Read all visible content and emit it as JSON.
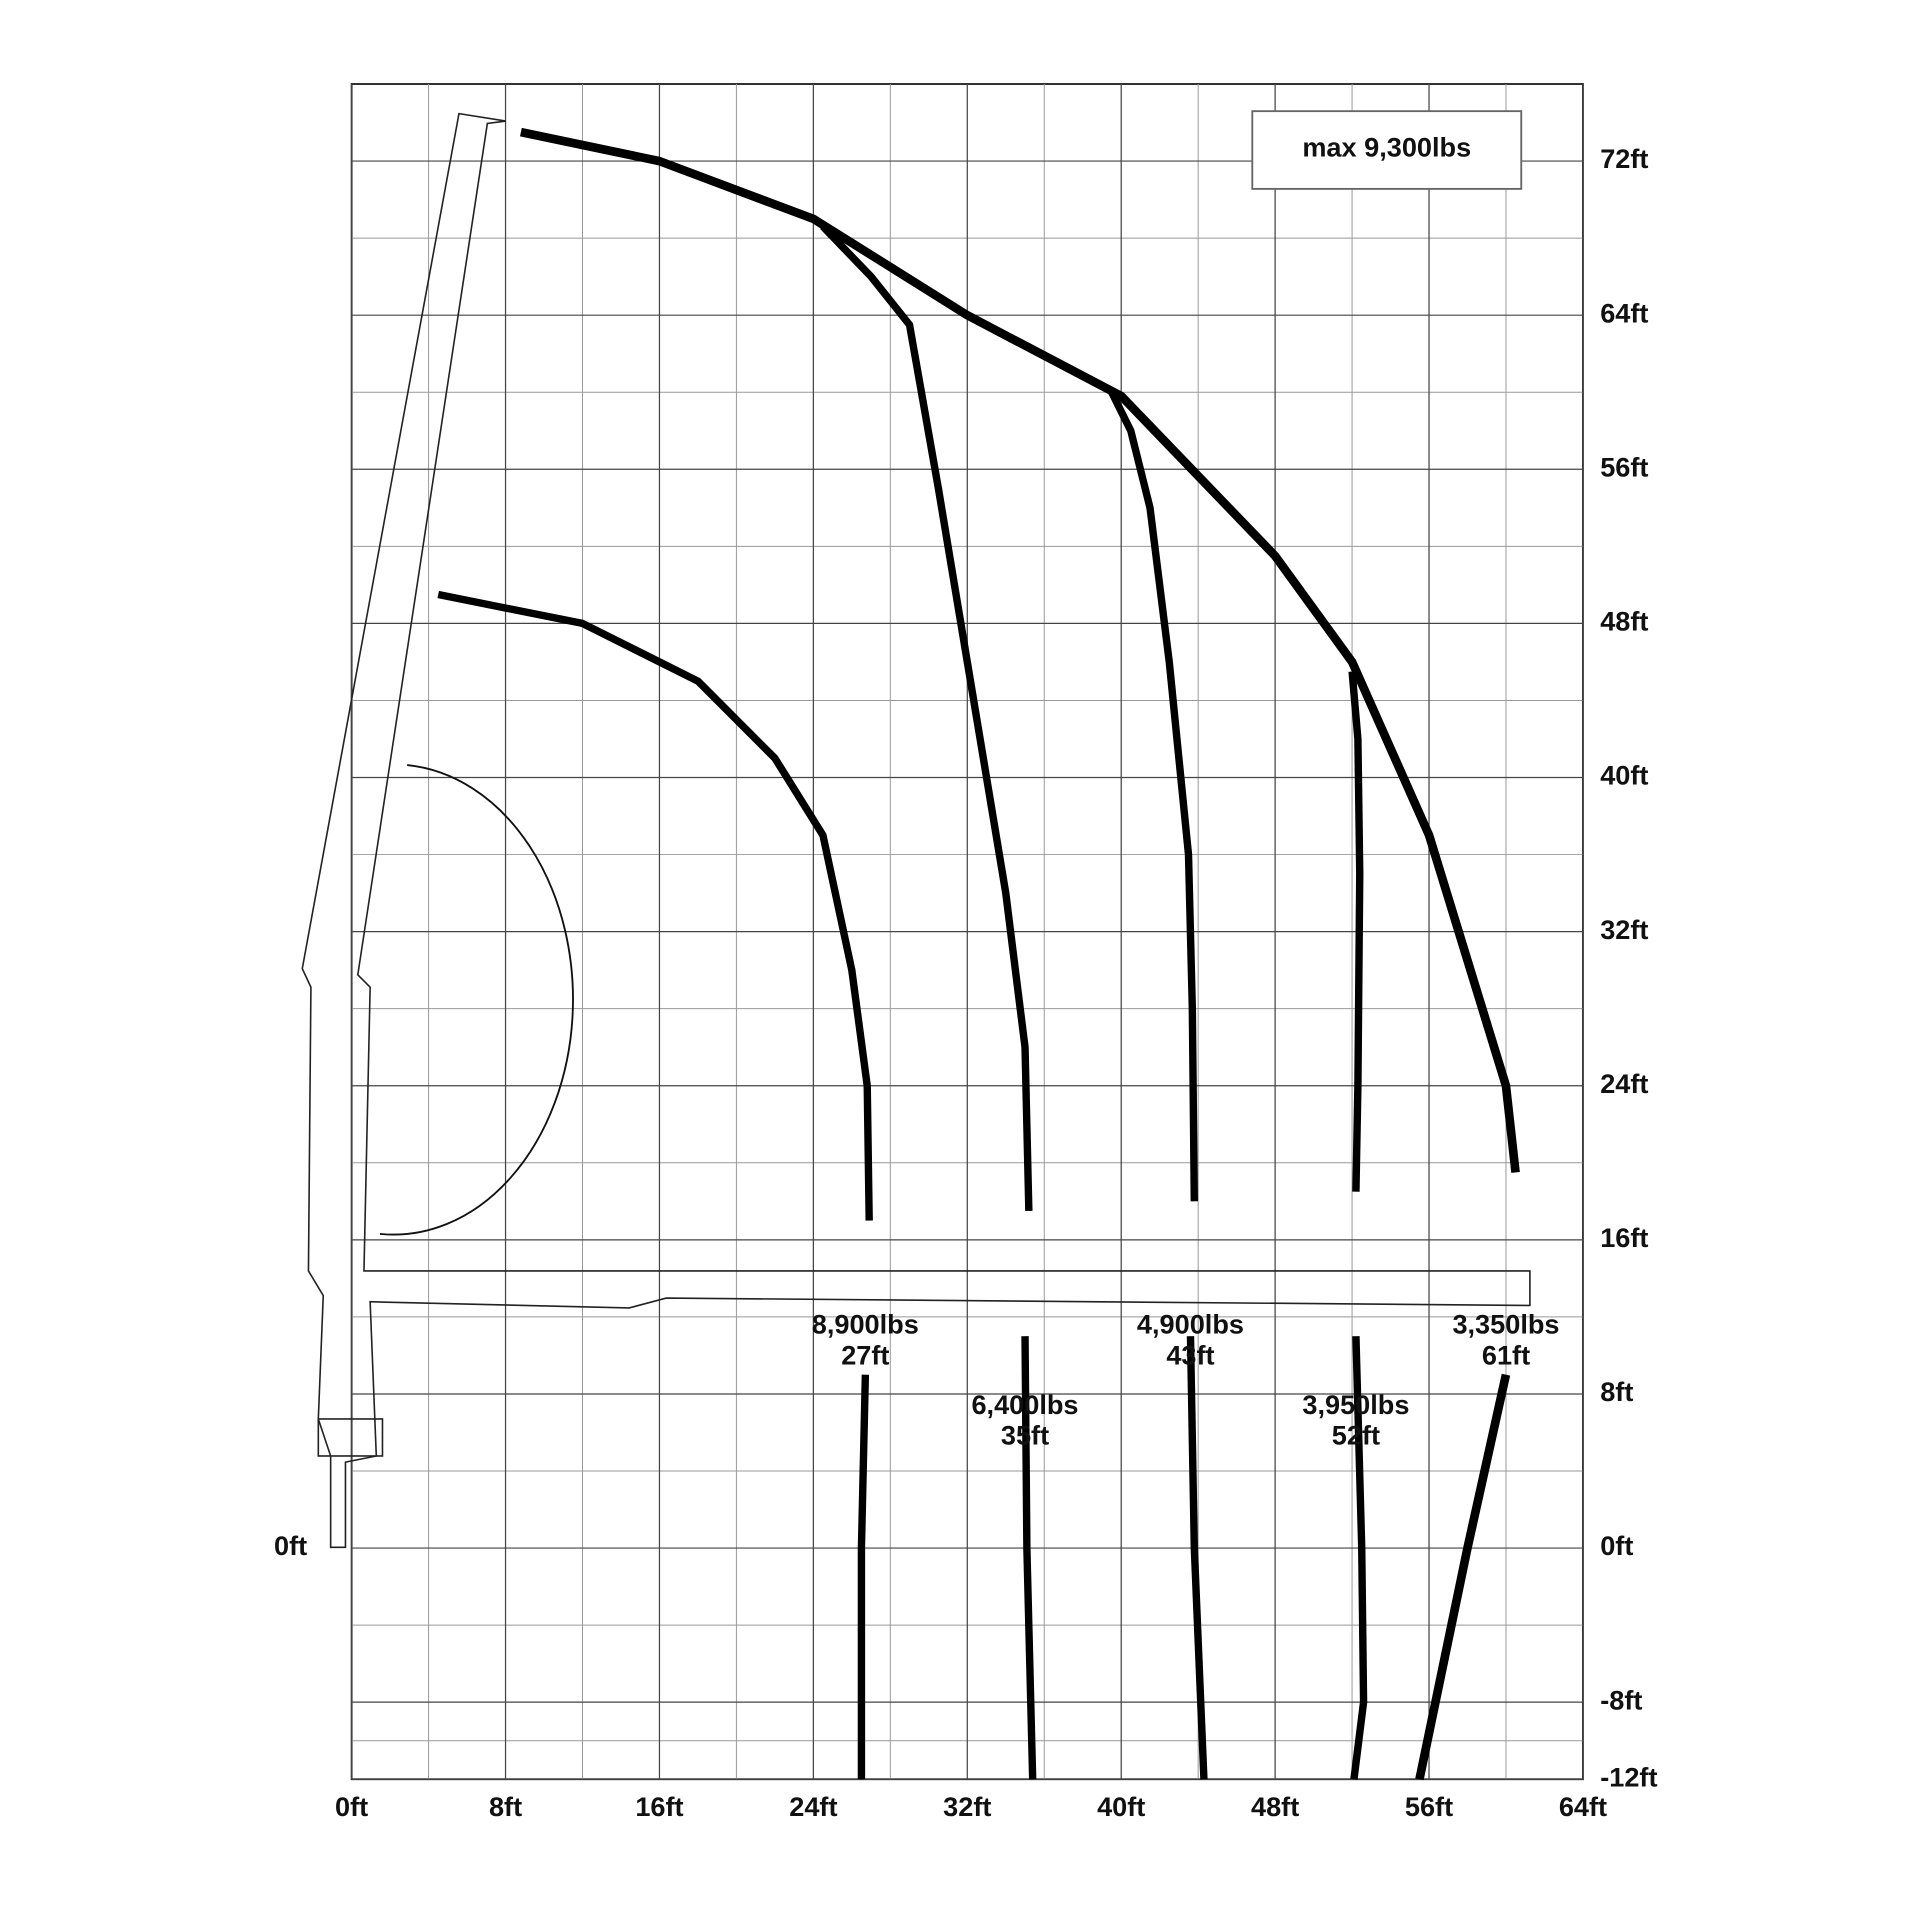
{
  "chart_data": {
    "type": "line",
    "annotation": "max 9,300lbs",
    "xlim": [
      0,
      64
    ],
    "ylim": [
      -12,
      76
    ],
    "xticks": [
      {
        "value": 0,
        "label": "0ft"
      },
      {
        "value": 8,
        "label": "8ft"
      },
      {
        "value": 16,
        "label": "16ft"
      },
      {
        "value": 24,
        "label": "24ft"
      },
      {
        "value": 32,
        "label": "32ft"
      },
      {
        "value": 40,
        "label": "40ft"
      },
      {
        "value": 48,
        "label": "48ft"
      },
      {
        "value": 56,
        "label": "56ft"
      },
      {
        "value": 64,
        "label": "64ft"
      }
    ],
    "yticks": [
      {
        "value": 72,
        "label": "72ft"
      },
      {
        "value": 64,
        "label": "64ft"
      },
      {
        "value": 56,
        "label": "56ft"
      },
      {
        "value": 48,
        "label": "48ft"
      },
      {
        "value": 40,
        "label": "40ft"
      },
      {
        "value": 32,
        "label": "32ft"
      },
      {
        "value": 24,
        "label": "24ft"
      },
      {
        "value": 16,
        "label": "16ft"
      },
      {
        "value": 8,
        "label": "8ft"
      },
      {
        "value": 0,
        "label": "0ft"
      },
      {
        "value": -8,
        "label": "-8ft"
      },
      {
        "value": -12,
        "label": "-12ft"
      }
    ],
    "grid": true,
    "color": "#000000",
    "series": [
      {
        "name": "8,900lbs",
        "reach": "27ft",
        "x": [
          4.5,
          12,
          18,
          22,
          24.5,
          26,
          26.8,
          26.9,
          null,
          26.7,
          26.5,
          26.5
        ],
        "values": [
          49.5,
          48,
          45,
          41,
          37,
          30,
          24,
          17,
          null,
          9,
          0,
          -12
        ]
      },
      {
        "name": "6,400lbs",
        "reach": "35ft",
        "x": [
          24.5,
          27,
          29,
          30.5,
          32,
          34,
          35,
          35.2,
          null,
          35,
          35.1,
          35.4
        ],
        "values": [
          68.6,
          66,
          63.5,
          55,
          46,
          34,
          26,
          17.5,
          null,
          11,
          0,
          -12
        ]
      },
      {
        "name": "4,900lbs",
        "reach": "43ft",
        "x": [
          39.5,
          40.5,
          41.5,
          42.5,
          43.5,
          43.7,
          43.8,
          null,
          43.6,
          43.8,
          44.3
        ],
        "values": [
          60,
          58,
          54,
          46,
          36,
          28,
          18,
          null,
          11,
          0,
          -12
        ]
      },
      {
        "name": "3,950lbs",
        "reach": "52ft",
        "x": [
          52,
          52.3,
          52.4,
          52.3,
          52.2,
          null,
          52.2,
          52.5,
          52.6,
          52.1
        ],
        "values": [
          45.5,
          42,
          35,
          24,
          18.5,
          null,
          11,
          0,
          -8,
          -12
        ]
      },
      {
        "name": "3,350lbs",
        "reach": "61ft",
        "x": [
          8.8,
          16,
          24,
          32,
          40,
          48,
          52,
          56,
          60,
          60.5,
          null,
          60,
          58,
          55.5
        ],
        "values": [
          73.5,
          72,
          69,
          64,
          59.8,
          51.5,
          46,
          37,
          24,
          19.5,
          null,
          9,
          0,
          -12
        ]
      }
    ]
  }
}
